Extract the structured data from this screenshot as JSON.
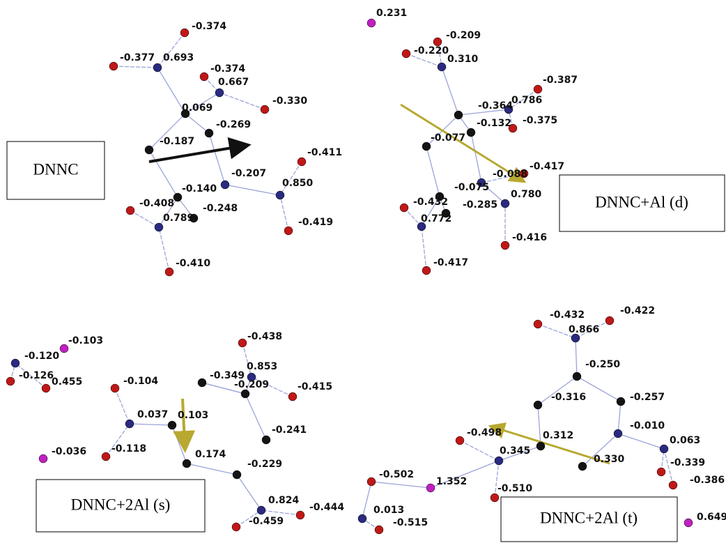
{
  "panels": [
    {
      "label": "DNNC",
      "charges": [
        "-0.374",
        "-0.377",
        "0.693",
        "-0.374",
        "0.667",
        "-0.330",
        "0.069",
        "-0.269",
        "-0.187",
        "-0.411",
        "-0.207",
        "0.850",
        "-0.140",
        "-0.408",
        "-0.248",
        "-0.419",
        "0.789",
        "-0.410"
      ]
    },
    {
      "label": "DNNC+Al (d)",
      "charges": [
        "0.231",
        "-0.209",
        "-0.220",
        "0.310",
        "-0.387",
        "0.786",
        "-0.364",
        "-0.375",
        "-0.132",
        "-0.077",
        "-0.417",
        "-0.088",
        "-0.075",
        "0.780",
        "-0.432",
        "-0.285",
        "0.772",
        "-0.416",
        "-0.417"
      ]
    },
    {
      "label": "DNNC+2Al (s)",
      "charges": [
        "-0.103",
        "-0.120",
        "-0.126",
        "0.455",
        "-0.104",
        "-0.349",
        "-0.438",
        "0.853",
        "-0.209",
        "-0.415",
        "0.037",
        "0.103",
        "-0.241",
        "-0.036",
        "-0.118",
        "0.174",
        "-0.229",
        "0.824",
        "-0.444",
        "-0.459"
      ]
    },
    {
      "label": "DNNC+2Al (t)",
      "charges": [
        "-0.432",
        "0.866",
        "-0.422",
        "-0.250",
        "-0.316",
        "-0.257",
        "-0.010",
        "0.312",
        "0.063",
        "-0.498",
        "0.345",
        "0.330",
        "-0.339",
        "-0.386",
        "-0.502",
        "1.352",
        "-0.510",
        "0.013",
        "-0.515",
        "0.649"
      ]
    }
  ]
}
